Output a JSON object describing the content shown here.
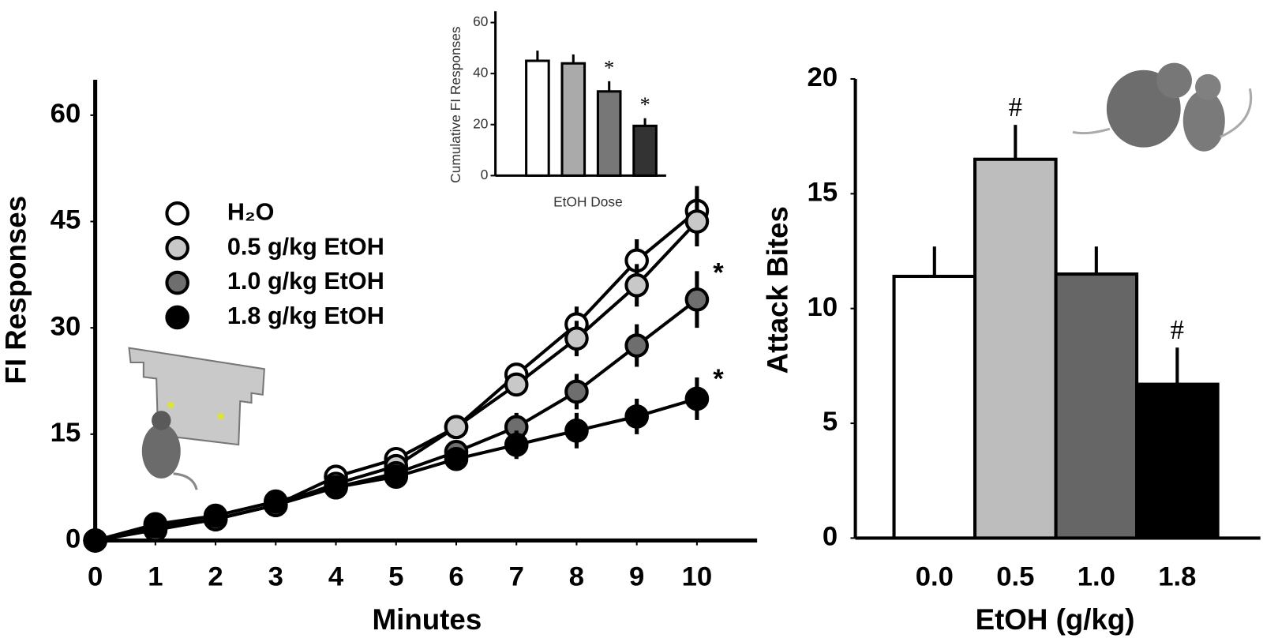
{
  "chart_data": [
    {
      "type": "line",
      "xlabel": "Minutes",
      "ylabel": "FI Responses",
      "x": [
        0,
        1,
        2,
        3,
        4,
        5,
        6,
        7,
        8,
        9,
        10
      ],
      "xlim": [
        0,
        11
      ],
      "xticks": [
        0,
        1,
        2,
        3,
        4,
        5,
        6,
        7,
        8,
        9,
        10
      ],
      "ylim": [
        0,
        65
      ],
      "yticks": [
        0,
        15,
        30,
        45,
        60
      ],
      "series": [
        {
          "name": "H₂O",
          "color": "#ffffff",
          "values": [
            0,
            1.5,
            3,
            5,
            9,
            11.5,
            16,
            23.4,
            30.5,
            39.5,
            46.5
          ],
          "errors": [
            0.3,
            0.5,
            0.5,
            0.7,
            0.8,
            1,
            1,
            1.5,
            2.5,
            3,
            3.5
          ]
        },
        {
          "name": "0.5 g/kg EtOH",
          "color": "#c8c8c8",
          "values": [
            0,
            1.5,
            3,
            5,
            8,
            10.5,
            16,
            22,
            28.5,
            36,
            45
          ],
          "errors": [
            0.3,
            0.5,
            0.5,
            0.7,
            0.8,
            1,
            1,
            1.5,
            2.5,
            3,
            3.5
          ]
        },
        {
          "name": "1.0 g/kg EtOH",
          "color": "#6e6e6e",
          "values": [
            0,
            2,
            3,
            5,
            7.5,
            9.5,
            12.5,
            16,
            21,
            27.5,
            34
          ],
          "errors": [
            0.3,
            0.5,
            0.5,
            0.7,
            0.8,
            1,
            1.5,
            2,
            2.5,
            3,
            4
          ],
          "annotation": "*"
        },
        {
          "name": "1.8 g/kg EtOH",
          "color": "#000000",
          "values": [
            0,
            2.3,
            3.5,
            5.5,
            7.5,
            9,
            11.5,
            13.5,
            15.5,
            17.5,
            20
          ],
          "errors": [
            0.3,
            0.5,
            0.5,
            0.7,
            0.8,
            1,
            1.5,
            2,
            2.5,
            2.5,
            3
          ],
          "annotation": "*"
        }
      ]
    },
    {
      "type": "bar",
      "xlabel": "EtOH Dose",
      "ylabel": "Cumulative FI Responses",
      "categories": [
        null,
        null,
        null,
        null
      ],
      "values": [
        45,
        44,
        33,
        19.5
      ],
      "errors": [
        4,
        3.5,
        4,
        3
      ],
      "annotations": [
        null,
        null,
        "*",
        "*"
      ],
      "colors": [
        "#ffffff",
        "#aaaaaa",
        "#777777",
        "#333333"
      ],
      "ylim": [
        0,
        60
      ],
      "yticks": [
        0,
        20,
        40,
        60
      ]
    },
    {
      "type": "bar",
      "xlabel": "EtOH (g/kg)",
      "ylabel": "Attack Bites",
      "categories": [
        "0.0",
        "0.5",
        "1.0",
        "1.8"
      ],
      "values": [
        11.4,
        16.5,
        11.5,
        6.7
      ],
      "errors": [
        1.3,
        1.5,
        1.2,
        1.6
      ],
      "annotations": [
        null,
        "#",
        null,
        "#"
      ],
      "colors": [
        "#ffffff",
        "#bdbdbd",
        "#666666",
        "#000000"
      ],
      "ylim": [
        0,
        20
      ],
      "yticks": [
        0,
        5,
        10,
        15,
        20
      ]
    }
  ]
}
